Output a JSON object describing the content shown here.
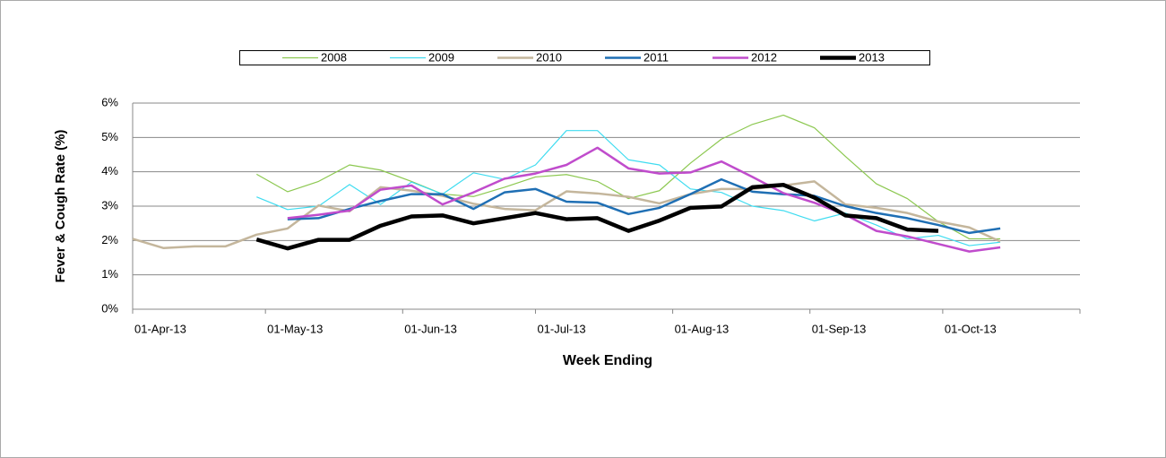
{
  "chart_data": {
    "type": "line",
    "x_label": "Week Ending",
    "y_label": "Fever & Cough Rate (%)",
    "x": [
      "2013-04-01",
      "2013-04-08",
      "2013-04-15",
      "2013-04-22",
      "2013-04-29",
      "2013-05-06",
      "2013-05-13",
      "2013-05-20",
      "2013-05-27",
      "2013-06-03",
      "2013-06-10",
      "2013-06-17",
      "2013-06-24",
      "2013-07-01",
      "2013-07-08",
      "2013-07-15",
      "2013-07-22",
      "2013-07-29",
      "2013-08-05",
      "2013-08-12",
      "2013-08-19",
      "2013-08-26",
      "2013-09-02",
      "2013-09-09",
      "2013-09-16",
      "2013-09-23",
      "2013-09-30",
      "2013-10-07",
      "2013-10-14"
    ],
    "xlim": [
      "2013-04-01",
      "2013-11-01"
    ],
    "xticks": [
      {
        "value": "2013-04-01",
        "label": "01-Apr-13"
      },
      {
        "value": "2013-05-01",
        "label": "01-May-13"
      },
      {
        "value": "2013-06-01",
        "label": "01-Jun-13"
      },
      {
        "value": "2013-07-01",
        "label": "01-Jul-13"
      },
      {
        "value": "2013-08-01",
        "label": "01-Aug-13"
      },
      {
        "value": "2013-09-01",
        "label": "01-Sep-13"
      },
      {
        "value": "2013-10-01",
        "label": "01-Oct-13"
      }
    ],
    "ylim": [
      0,
      6
    ],
    "yticks": [
      {
        "value": 0,
        "label": "0%"
      },
      {
        "value": 1,
        "label": "1%"
      },
      {
        "value": 2,
        "label": "2%"
      },
      {
        "value": 3,
        "label": "3%"
      },
      {
        "value": 4,
        "label": "4%"
      },
      {
        "value": 5,
        "label": "5%"
      },
      {
        "value": 6,
        "label": "6%"
      }
    ],
    "grid": true,
    "legend": "top",
    "series": [
      {
        "name": "2008",
        "color": "#8cc850",
        "line_width": 1.2,
        "values": [
          null,
          null,
          null,
          null,
          3.93,
          3.42,
          3.72,
          4.2,
          4.05,
          3.72,
          3.35,
          3.28,
          3.55,
          3.85,
          3.92,
          3.72,
          3.22,
          3.45,
          4.25,
          4.95,
          5.38,
          5.65,
          5.28,
          4.45,
          3.65,
          3.22,
          2.55,
          2.05,
          2.05
        ]
      },
      {
        "name": "2009",
        "color": "#3fdcf0",
        "line_width": 1.2,
        "values": [
          null,
          null,
          null,
          null,
          3.27,
          2.9,
          3.0,
          3.63,
          3.05,
          3.7,
          3.35,
          3.97,
          3.78,
          4.2,
          5.2,
          5.2,
          4.35,
          4.2,
          3.5,
          3.4,
          3.0,
          2.87,
          2.57,
          2.8,
          2.45,
          2.05,
          2.15,
          1.85,
          1.95
        ]
      },
      {
        "name": "2010",
        "color": "#c4b69c",
        "line_width": 2.5,
        "values": [
          2.05,
          1.78,
          1.83,
          1.83,
          2.17,
          2.35,
          3.02,
          2.85,
          3.55,
          3.45,
          3.3,
          3.07,
          2.92,
          2.88,
          3.43,
          3.37,
          3.27,
          3.08,
          3.35,
          3.5,
          3.5,
          3.6,
          3.72,
          3.05,
          2.95,
          2.8,
          2.55,
          2.38,
          1.97
        ]
      },
      {
        "name": "2011",
        "color": "#1f6fb4",
        "line_width": 2.5,
        "values": [
          null,
          null,
          null,
          null,
          null,
          2.62,
          2.65,
          2.92,
          3.15,
          3.35,
          3.35,
          2.92,
          3.4,
          3.5,
          3.13,
          3.1,
          2.77,
          2.95,
          3.35,
          3.78,
          3.42,
          3.35,
          3.3,
          3.0,
          2.8,
          2.65,
          2.45,
          2.22,
          2.35
        ]
      },
      {
        "name": "2012",
        "color": "#c04ccc",
        "line_width": 2.5,
        "values": [
          null,
          null,
          null,
          null,
          null,
          2.65,
          2.75,
          2.87,
          3.48,
          3.6,
          3.05,
          3.4,
          3.8,
          3.95,
          4.2,
          4.7,
          4.1,
          3.95,
          3.98,
          4.3,
          3.85,
          3.38,
          3.1,
          2.75,
          2.28,
          2.12,
          1.9,
          1.68,
          1.8
        ]
      },
      {
        "name": "2013",
        "color": "#000000",
        "line_width": 4.5,
        "values": [
          null,
          null,
          null,
          null,
          2.03,
          1.77,
          2.02,
          2.02,
          2.43,
          2.7,
          2.73,
          2.5,
          2.65,
          2.8,
          2.62,
          2.65,
          2.28,
          2.58,
          2.95,
          2.99,
          3.55,
          3.62,
          3.25,
          2.73,
          2.65,
          2.32,
          2.28,
          null,
          null
        ]
      }
    ]
  }
}
